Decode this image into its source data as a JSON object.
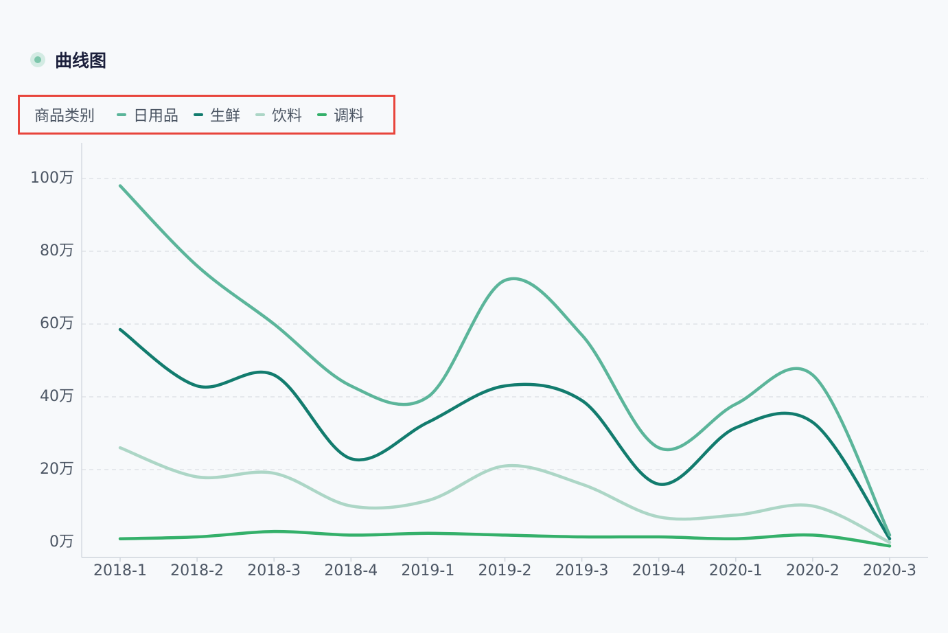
{
  "header": {
    "title": "曲线图"
  },
  "legend": {
    "title": "商品类别",
    "items": [
      {
        "label": "日用品",
        "color": "#5bb59a"
      },
      {
        "label": "生鲜",
        "color": "#127c6e"
      },
      {
        "label": "饮料",
        "color": "#acd6c6"
      },
      {
        "label": "调料",
        "color": "#34b06a"
      }
    ]
  },
  "chart_data": {
    "type": "line",
    "smooth": true,
    "categories": [
      "2018-1",
      "2018-2",
      "2018-3",
      "2018-4",
      "2019-1",
      "2019-2",
      "2019-3",
      "2019-4",
      "2020-1",
      "2020-2",
      "2020-3"
    ],
    "y_ticks": [
      0,
      20,
      40,
      60,
      80,
      100
    ],
    "y_tick_labels": [
      "0万",
      "20万",
      "40万",
      "60万",
      "80万",
      "100万"
    ],
    "ylim": [
      -3,
      110
    ],
    "grid": true,
    "legend_position": "top-left",
    "series": [
      {
        "name": "日用品",
        "color": "#5bb59a",
        "values": [
          98,
          76,
          60,
          43,
          40,
          72,
          57,
          26,
          38,
          46,
          2
        ]
      },
      {
        "name": "生鲜",
        "color": "#127c6e",
        "values": [
          58.5,
          43,
          46,
          23,
          33,
          43,
          39,
          16,
          31.5,
          33,
          1
        ]
      },
      {
        "name": "饮料",
        "color": "#acd6c6",
        "values": [
          26,
          18,
          19,
          10,
          11.5,
          21,
          16,
          7,
          7.5,
          10,
          0
        ]
      },
      {
        "name": "调料",
        "color": "#34b06a",
        "values": [
          1,
          1.5,
          3,
          2,
          2.5,
          2,
          1.5,
          1.5,
          1,
          2,
          -1
        ]
      }
    ]
  }
}
